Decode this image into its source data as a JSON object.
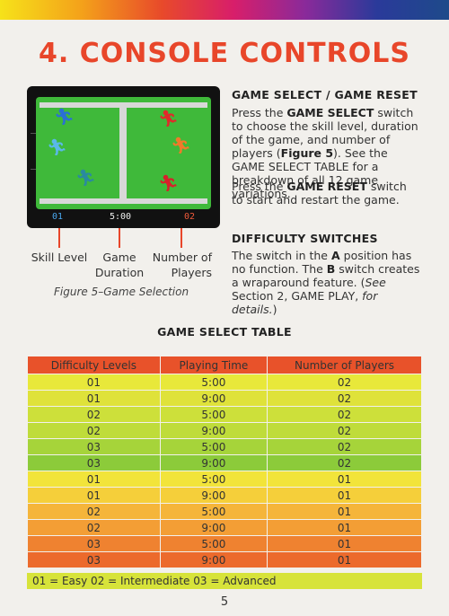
{
  "page_title": "4. CONSOLE CONTROLS",
  "screen": {
    "score_left": "01",
    "score_middle": "5:00",
    "score_right": "02"
  },
  "labels": {
    "skill": "Skill Level",
    "game": "Game",
    "duration": "Duration",
    "number_of": "Number of",
    "players": "Players"
  },
  "caption": "Figure 5–Game Selection",
  "section_select": {
    "heading": "GAME SELECT / GAME RESET",
    "p1_a": "Press the ",
    "p1_b": "GAME SELECT",
    "p1_c": " switch to choose the skill level, duration of the game, and number of players (",
    "p1_d": "Figure 5",
    "p1_e": "). See the GAME SELECT TABLE for a breakdown of all 12 game variations.",
    "p2_a": "Press the ",
    "p2_b": "GAME RESET",
    "p2_c": " switch to start and restart the game."
  },
  "section_difficulty": {
    "heading": "DIFFICULTY SWITCHES",
    "p_a": "The switch in the ",
    "p_b": "A",
    "p_c": " position has no function. The ",
    "p_d": "B",
    "p_e": " switch creates a wraparound feature. (",
    "p_f": "See",
    "p_g": " Section 2, GAME PLAY,",
    "p_h": " for details.",
    "p_i": ")"
  },
  "table": {
    "title": "GAME SELECT TABLE",
    "headers": [
      "Difficulty Levels",
      "Playing Time",
      "Number of Players"
    ],
    "rows": [
      [
        "01",
        "5:00",
        "02"
      ],
      [
        "01",
        "9:00",
        "02"
      ],
      [
        "02",
        "5:00",
        "02"
      ],
      [
        "02",
        "9:00",
        "02"
      ],
      [
        "03",
        "5:00",
        "02"
      ],
      [
        "03",
        "9:00",
        "02"
      ],
      [
        "01",
        "5:00",
        "01"
      ],
      [
        "01",
        "9:00",
        "01"
      ],
      [
        "02",
        "5:00",
        "01"
      ],
      [
        "02",
        "9:00",
        "01"
      ],
      [
        "03",
        "5:00",
        "01"
      ],
      [
        "03",
        "9:00",
        "01"
      ]
    ],
    "row_colors": [
      "#e8e83a",
      "#dfe23a",
      "#cde03a",
      "#bfdc3a",
      "#a6d43a",
      "#8ccb3a",
      "#f2e43a",
      "#f5cf3a",
      "#f5b53a",
      "#f39e35",
      "#ef8230",
      "#ec6a2c"
    ],
    "legend": "01 = Easy    02 = Intermediate    03 = Advanced"
  },
  "page_number": "5"
}
